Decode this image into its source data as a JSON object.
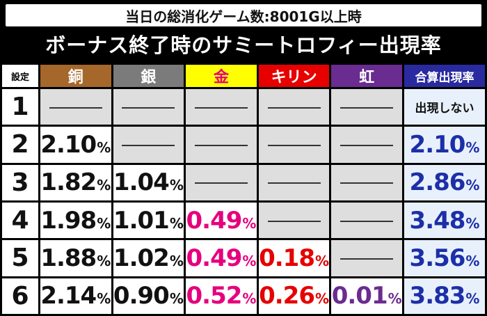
{
  "condition": "当日の総消化ゲーム数:8001G以上時",
  "title": "ボーナス終了時のサミートロフィー出現率",
  "headers": {
    "setting": "設定",
    "copper": "銅",
    "silver": "銀",
    "gold": "金",
    "kirin": "キリン",
    "rainbow": "虹",
    "total": "合算出現率"
  },
  "colors": {
    "copper": "#a5672a",
    "silver": "#7b7b7b",
    "gold_bg": "#ffff00",
    "gold_text": "#e6007e",
    "kirin": "#e60000",
    "rainbow": "#6a2c91",
    "total": "#2a2aa0"
  },
  "percent_sign": "%",
  "rows": [
    {
      "setting": "1",
      "copper": "",
      "silver": "",
      "gold": "",
      "kirin": "",
      "rainbow": "",
      "total": "出現しない"
    },
    {
      "setting": "2",
      "copper": "2.10",
      "silver": "",
      "gold": "",
      "kirin": "",
      "rainbow": "",
      "total": "2.10"
    },
    {
      "setting": "3",
      "copper": "1.82",
      "silver": "1.04",
      "gold": "",
      "kirin": "",
      "rainbow": "",
      "total": "2.86"
    },
    {
      "setting": "4",
      "copper": "1.98",
      "silver": "1.01",
      "gold": "0.49",
      "kirin": "",
      "rainbow": "",
      "total": "3.48"
    },
    {
      "setting": "5",
      "copper": "1.88",
      "silver": "1.02",
      "gold": "0.49",
      "kirin": "0.18",
      "rainbow": "",
      "total": "3.56"
    },
    {
      "setting": "6",
      "copper": "2.14",
      "silver": "0.90",
      "gold": "0.52",
      "kirin": "0.26",
      "rainbow": "0.01",
      "total": "3.83"
    }
  ]
}
